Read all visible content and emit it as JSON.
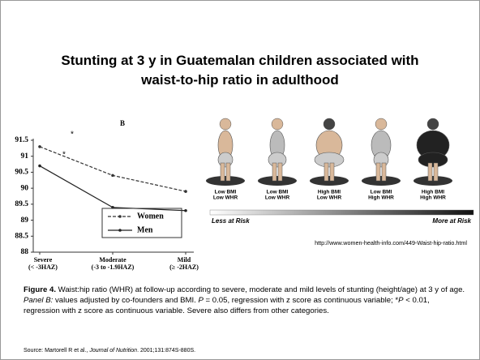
{
  "title": [
    "Stunting at 3 y in Guatemalan children associated with",
    "waist-to-hip ratio in adulthood"
  ],
  "chart_data": {
    "type": "line",
    "panel_label": "B",
    "categories": [
      "Severe",
      "Moderate",
      "Mild"
    ],
    "category_sublabels": [
      "(< -3HAZ)",
      "(-3 to -1.9HAZ)",
      "(≥ -2HAZ)"
    ],
    "series": [
      {
        "name": "Women",
        "color": "#333333",
        "line_style": "dashed",
        "values": [
          91.3,
          90.4,
          89.9
        ]
      },
      {
        "name": "Men",
        "color": "#222222",
        "line_style": "solid",
        "values": [
          90.7,
          89.4,
          89.3
        ]
      }
    ],
    "annotations": [
      "*",
      "*"
    ],
    "ylim": [
      88,
      91.5
    ],
    "yticks": [
      88,
      88.5,
      89,
      89.5,
      90,
      90.5,
      91,
      91.5
    ]
  },
  "figures": [
    [
      "Low BMI",
      "Low WHR"
    ],
    [
      "Low BMI",
      "Low WHR"
    ],
    [
      "High BMI",
      "Low WHR"
    ],
    [
      "Low BMI",
      "High WHR"
    ],
    [
      "High BMI",
      "High WHR"
    ]
  ],
  "risk_scale": [
    "Less at Risk",
    "More at Risk"
  ],
  "image_url": "http://www.women-health-info.com/449-Waist-hip-ratio.html",
  "caption": [
    "Figure 4.",
    " Waist:hip ratio (WHR) at follow-up according to severe, moderate and mild levels of stunting (height/age) at 3 y of age. ",
    "Panel B:",
    " values adjusted by co-founders and BMI. ",
    "P",
    " = 0.05, regression with z score as continuous variable; *",
    "P",
    " < 0.01, regression with z score as continuous variable. Severe also differs from other categories."
  ],
  "source": [
    "Source:  Martorell R et al., ",
    "Journal of Nutrition",
    ". 2001;131:874S-880S."
  ]
}
